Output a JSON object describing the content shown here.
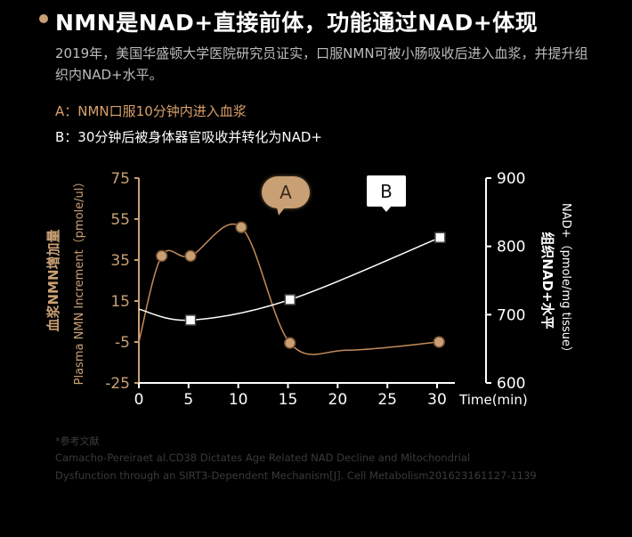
{
  "header": {
    "title": "NMN是NAD+直接前体，功能通过NAD+体现",
    "intro": "2019年，美国华盛顿大学医院研究员证实，口服NMN可被小肠吸收后进入血浆，并提升组织内NAD+水平。"
  },
  "notes": {
    "a": "A：NMN口服10分钟内进入血浆",
    "b": "B：30分钟后被身体器官吸收并转化为NAD+"
  },
  "colors": {
    "background": "#000000",
    "accent_gold": "#c9a074",
    "plasma_line": "#c48c5a",
    "tissue_line": "#ffffff",
    "note_a": "#d9a06a"
  },
  "chart_data": {
    "type": "line",
    "x": [
      0,
      5,
      10,
      15,
      20,
      25,
      30
    ],
    "xlim": [
      0,
      30
    ],
    "xticks": [
      "0",
      "5",
      "10",
      "15",
      "20",
      "25",
      "30"
    ],
    "xlabel": "Time(min)",
    "y_left": {
      "label_cn": "血浆NMN增加量",
      "label_en": "Plasma NMN Increment（pmole/ul）",
      "ylim": [
        -25,
        75
      ],
      "ticks": [
        "75",
        "55",
        "35",
        "15",
        "-5",
        "-25"
      ]
    },
    "y_right": {
      "label_cn": "组织NAD+水平",
      "label_en": "NAD+（pmole/mg tissue）",
      "ylim": [
        600,
        900
      ],
      "ticks": [
        "900",
        "800",
        "700",
        "600"
      ]
    },
    "series": [
      {
        "axis": "left",
        "marker": "circle",
        "points": [
          [
            2.3,
            37
          ],
          [
            5.2,
            37
          ],
          [
            10.3,
            51
          ],
          [
            15.2,
            -5.5
          ],
          [
            30.2,
            -5
          ]
        ]
      },
      {
        "axis": "right",
        "marker": "square",
        "points": [
          [
            5.2,
            692
          ],
          [
            15.2,
            722
          ],
          [
            30.3,
            813
          ]
        ]
      }
    ],
    "callouts": [
      {
        "label": "A",
        "style": "gold-bubble"
      },
      {
        "label": "B",
        "style": "white-box"
      }
    ],
    "grid": false,
    "legend": "none"
  },
  "reference": {
    "heading": "*参考文献",
    "line1": "Camacho-Pereiraet al.CD38 Dictates Age Related NAD Decline and Mitochondrial",
    "line2": "Dysfunction through an SIRT3-Dependent Mechanism[J]. Cell Metabolism201623161127-1139"
  }
}
